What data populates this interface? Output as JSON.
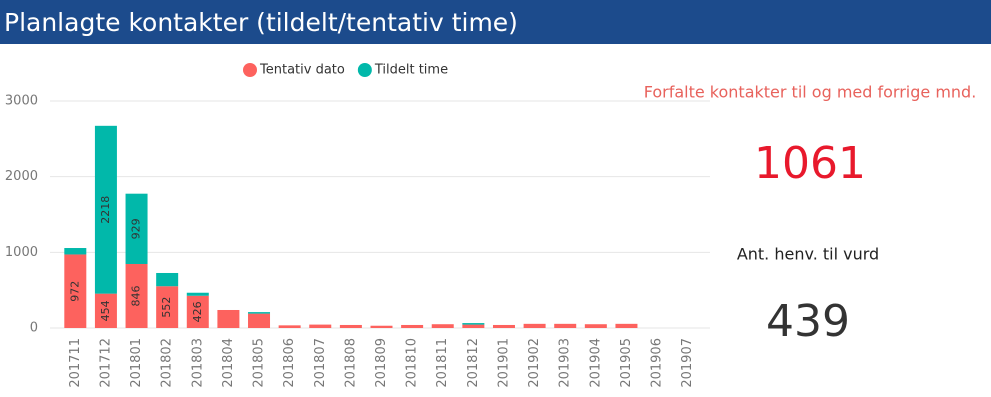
{
  "header": {
    "title": "Planlagte kontakter (tildelt/tentativ time)"
  },
  "chart_data": {
    "type": "stacked_bar",
    "categories": [
      "201711",
      "201712",
      "201801",
      "201802",
      "201803",
      "201804",
      "201805",
      "201806",
      "201807",
      "201808",
      "201809",
      "201810",
      "201811",
      "201812",
      "201901",
      "201902",
      "201903",
      "201904",
      "201905",
      "201906",
      "201907"
    ],
    "series": [
      {
        "name": "Tentativ dato",
        "color": "#fd625e",
        "values": [
          972,
          454,
          846,
          552,
          426,
          238,
          190,
          35,
          45,
          40,
          30,
          40,
          50,
          45,
          40,
          55,
          55,
          50,
          55,
          0,
          0
        ]
      },
      {
        "name": "Tildelt time",
        "color": "#01b8aa",
        "values": [
          85,
          2218,
          929,
          175,
          40,
          0,
          20,
          0,
          0,
          0,
          0,
          0,
          0,
          20,
          0,
          0,
          0,
          0,
          0,
          0,
          0
        ]
      }
    ],
    "ylim": [
      0,
      3000
    ],
    "yticks": [
      0,
      1000,
      2000,
      3000
    ],
    "grid": true
  },
  "cards": [
    {
      "label": "Forfalte kontakter til og med forrige mnd.",
      "value": 1061
    },
    {
      "label": "Ant. henv. til vurd",
      "value": 439
    }
  ]
}
